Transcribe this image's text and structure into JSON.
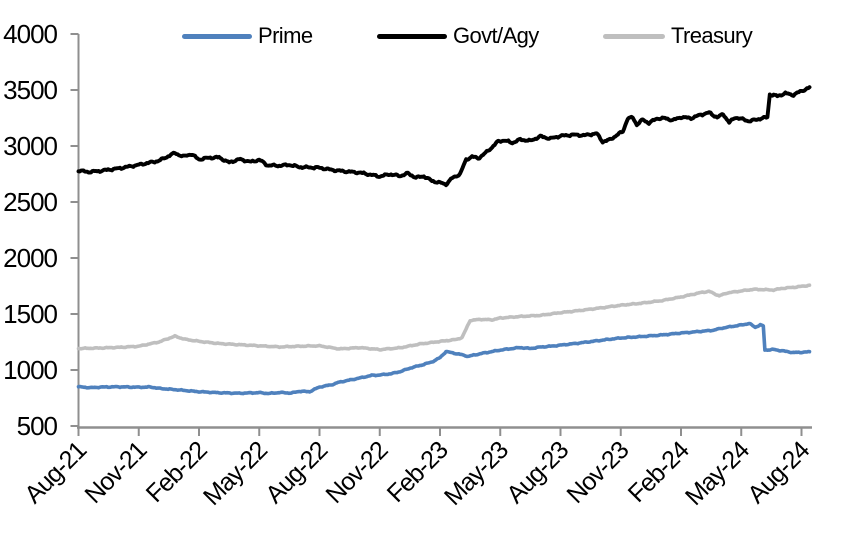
{
  "chart_data": {
    "type": "line",
    "title": "",
    "background": "#ffffff",
    "axis_color": "#8f8f8f",
    "text_color": "#000000",
    "grid": false,
    "legend_position": "top",
    "x_axis": {
      "tick_labels": [
        "Aug-21",
        "Nov-21",
        "Feb-22",
        "May-22",
        "Aug-22",
        "Nov-22",
        "Feb-23",
        "May-23",
        "Aug-23",
        "Nov-23",
        "Feb-24",
        "May-24",
        "Aug-24"
      ],
      "label_rotation_deg": -45,
      "months_per_tick": 3,
      "data_span_months": 36.4
    },
    "y_axis": {
      "min": 500,
      "max": 4000,
      "step": 500,
      "tick_labels": [
        "500",
        "1000",
        "1500",
        "2000",
        "2500",
        "3000",
        "3500",
        "4000"
      ]
    },
    "series": [
      {
        "name": "Prime",
        "color": "#4f81bd",
        "points": [
          [
            0,
            850
          ],
          [
            0.6,
            842
          ],
          [
            1.2,
            848
          ],
          [
            2,
            850
          ],
          [
            3,
            846
          ],
          [
            3.6,
            848
          ],
          [
            4,
            836
          ],
          [
            5,
            822
          ],
          [
            6,
            806
          ],
          [
            7,
            797
          ],
          [
            8,
            792
          ],
          [
            9,
            798
          ],
          [
            9.5,
            790
          ],
          [
            10,
            799
          ],
          [
            10.6,
            794
          ],
          [
            11,
            810
          ],
          [
            11.5,
            806
          ],
          [
            12,
            848
          ],
          [
            12.6,
            868
          ],
          [
            13,
            892
          ],
          [
            14,
            928
          ],
          [
            14.6,
            952
          ],
          [
            15,
            955
          ],
          [
            15.6,
            968
          ],
          [
            16,
            985
          ],
          [
            16.6,
            1022
          ],
          [
            17,
            1040
          ],
          [
            17.6,
            1072
          ],
          [
            18,
            1110
          ],
          [
            18.3,
            1165
          ],
          [
            18.7,
            1150
          ],
          [
            19,
            1140
          ],
          [
            19.4,
            1122
          ],
          [
            20,
            1145
          ],
          [
            20.6,
            1165
          ],
          [
            21,
            1178
          ],
          [
            21.6,
            1192
          ],
          [
            22,
            1200
          ],
          [
            22.5,
            1192
          ],
          [
            23,
            1205
          ],
          [
            23.5,
            1212
          ],
          [
            24,
            1222
          ],
          [
            25,
            1242
          ],
          [
            26,
            1265
          ],
          [
            27,
            1286
          ],
          [
            28,
            1298
          ],
          [
            29,
            1312
          ],
          [
            30,
            1330
          ],
          [
            31,
            1345
          ],
          [
            31.6,
            1355
          ],
          [
            32,
            1372
          ],
          [
            32.5,
            1388
          ],
          [
            33,
            1402
          ],
          [
            33.4,
            1415
          ],
          [
            33.7,
            1382
          ],
          [
            33.95,
            1403
          ],
          [
            34.1,
            1392
          ],
          [
            34.18,
            1178
          ],
          [
            34.6,
            1183
          ],
          [
            35,
            1172
          ],
          [
            35.6,
            1156
          ],
          [
            36,
            1158
          ],
          [
            36.4,
            1162
          ]
        ]
      },
      {
        "name": "Govt/Agy",
        "color": "#000000",
        "points": [
          [
            0,
            2780
          ],
          [
            0.5,
            2768
          ],
          [
            1,
            2776
          ],
          [
            2,
            2800
          ],
          [
            3,
            2832
          ],
          [
            4,
            2868
          ],
          [
            4.8,
            2938
          ],
          [
            5.2,
            2905
          ],
          [
            5.6,
            2928
          ],
          [
            6,
            2880
          ],
          [
            6.5,
            2895
          ],
          [
            7,
            2898
          ],
          [
            7.5,
            2852
          ],
          [
            8,
            2882
          ],
          [
            8.6,
            2858
          ],
          [
            9,
            2878
          ],
          [
            9.4,
            2828
          ],
          [
            10,
            2824
          ],
          [
            10.5,
            2832
          ],
          [
            11,
            2812
          ],
          [
            12,
            2806
          ],
          [
            12.5,
            2790
          ],
          [
            13,
            2778
          ],
          [
            14,
            2762
          ],
          [
            15,
            2728
          ],
          [
            15.5,
            2748
          ],
          [
            16,
            2732
          ],
          [
            16.4,
            2756
          ],
          [
            16.8,
            2718
          ],
          [
            17.2,
            2730
          ],
          [
            17.6,
            2688
          ],
          [
            18,
            2672
          ],
          [
            18.3,
            2658
          ],
          [
            18.6,
            2712
          ],
          [
            19,
            2750
          ],
          [
            19.3,
            2878
          ],
          [
            19.6,
            2905
          ],
          [
            19.9,
            2890
          ],
          [
            20.2,
            2928
          ],
          [
            20.6,
            2990
          ],
          [
            20.9,
            3042
          ],
          [
            21.2,
            3050
          ],
          [
            21.6,
            3028
          ],
          [
            22,
            3058
          ],
          [
            22.5,
            3046
          ],
          [
            23,
            3086
          ],
          [
            23.5,
            3066
          ],
          [
            24,
            3090
          ],
          [
            24.6,
            3100
          ],
          [
            25.2,
            3095
          ],
          [
            25.8,
            3112
          ],
          [
            26.1,
            3038
          ],
          [
            26.4,
            3052
          ],
          [
            26.8,
            3095
          ],
          [
            27.1,
            3130
          ],
          [
            27.35,
            3245
          ],
          [
            27.6,
            3255
          ],
          [
            27.8,
            3190
          ],
          [
            28.1,
            3235
          ],
          [
            28.4,
            3205
          ],
          [
            28.8,
            3245
          ],
          [
            29.2,
            3248
          ],
          [
            29.6,
            3230
          ],
          [
            30,
            3258
          ],
          [
            30.5,
            3248
          ],
          [
            31,
            3280
          ],
          [
            31.4,
            3298
          ],
          [
            31.8,
            3255
          ],
          [
            32.1,
            3285
          ],
          [
            32.4,
            3210
          ],
          [
            32.7,
            3255
          ],
          [
            33,
            3242
          ],
          [
            33.4,
            3222
          ],
          [
            34,
            3246
          ],
          [
            34.3,
            3256
          ],
          [
            34.42,
            3460
          ],
          [
            34.8,
            3446
          ],
          [
            35.2,
            3470
          ],
          [
            35.6,
            3456
          ],
          [
            36,
            3492
          ],
          [
            36.4,
            3520
          ]
        ]
      },
      {
        "name": "Treasury",
        "color": "#bfbfbf",
        "points": [
          [
            0,
            1192
          ],
          [
            1,
            1196
          ],
          [
            2,
            1202
          ],
          [
            3,
            1212
          ],
          [
            4,
            1250
          ],
          [
            4.8,
            1302
          ],
          [
            5.3,
            1274
          ],
          [
            6,
            1256
          ],
          [
            7,
            1236
          ],
          [
            8,
            1226
          ],
          [
            9,
            1216
          ],
          [
            10,
            1206
          ],
          [
            11,
            1212
          ],
          [
            12,
            1216
          ],
          [
            13,
            1188
          ],
          [
            14,
            1200
          ],
          [
            15,
            1182
          ],
          [
            16,
            1198
          ],
          [
            17,
            1232
          ],
          [
            18,
            1255
          ],
          [
            18.8,
            1272
          ],
          [
            19.1,
            1290
          ],
          [
            19.5,
            1442
          ],
          [
            20,
            1452
          ],
          [
            20.6,
            1448
          ],
          [
            21,
            1464
          ],
          [
            22,
            1478
          ],
          [
            23,
            1488
          ],
          [
            24,
            1512
          ],
          [
            25,
            1532
          ],
          [
            26,
            1554
          ],
          [
            27,
            1578
          ],
          [
            28,
            1596
          ],
          [
            29,
            1618
          ],
          [
            30,
            1652
          ],
          [
            31,
            1692
          ],
          [
            31.4,
            1702
          ],
          [
            31.9,
            1662
          ],
          [
            32.3,
            1688
          ],
          [
            33,
            1706
          ],
          [
            33.6,
            1720
          ],
          [
            34.1,
            1718
          ],
          [
            34.6,
            1714
          ],
          [
            35,
            1728
          ],
          [
            35.7,
            1740
          ],
          [
            36.4,
            1756
          ]
        ]
      }
    ]
  }
}
